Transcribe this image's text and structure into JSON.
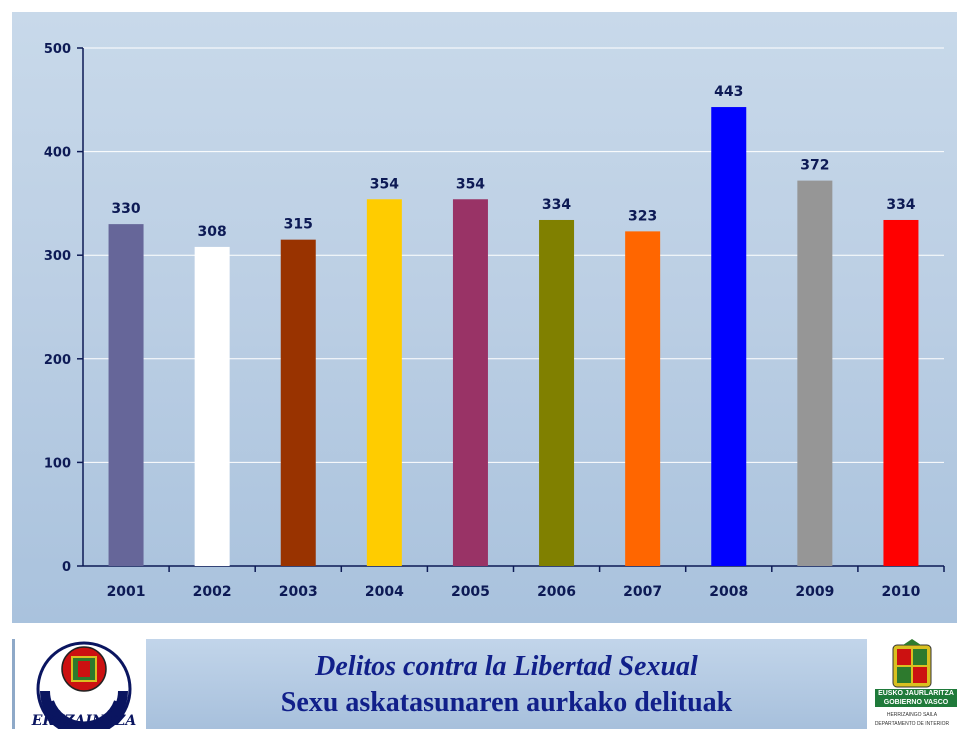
{
  "chart_data": {
    "type": "bar",
    "categories": [
      "2001",
      "2002",
      "2003",
      "2004",
      "2005",
      "2006",
      "2007",
      "2008",
      "2009",
      "2010"
    ],
    "values": [
      330,
      308,
      315,
      354,
      354,
      334,
      323,
      443,
      372,
      334
    ],
    "bar_colors": [
      "#666699",
      "#ffffff",
      "#993300",
      "#ffcc00",
      "#993366",
      "#808000",
      "#ff6600",
      "#0000ff",
      "#969696",
      "#ff0000"
    ],
    "ylim": [
      0,
      500
    ],
    "yticks": [
      0,
      100,
      200,
      300,
      400,
      500
    ],
    "grid": true,
    "data_labels": true
  },
  "footer": {
    "title_line1": "Delitos contra la Libertad Sexual",
    "title_line2": "Sexu askatasunaren aurkako delituak",
    "left_logo_text": "ERTZAINTZA",
    "right_logo": {
      "line1": "EUSKO JAURLARITZA",
      "line2": "GOBIERNO VASCO",
      "dept1": "HERRIZAINGO SAILA",
      "dept2": "DEPARTAMENTO DE INTERIOR"
    }
  }
}
